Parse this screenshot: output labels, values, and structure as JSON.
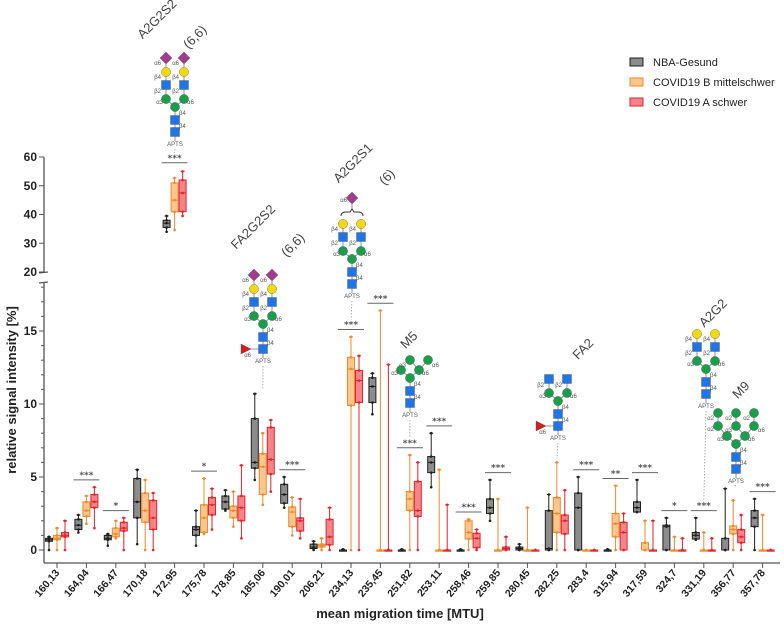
{
  "chart_data": {
    "type": "box",
    "title": "",
    "xlabel": "mean migration time [MTU]",
    "ylabel": "relative signal intensity [%]",
    "y_axis": {
      "broken": true,
      "lower_range": [
        0,
        18
      ],
      "upper_range": [
        20,
        60
      ],
      "lower_ticks": [
        "0",
        "5",
        "10",
        "15"
      ],
      "upper_ticks": [
        "20",
        "30",
        "40",
        "50",
        "60"
      ]
    },
    "grid": false,
    "legend_position": "top-right",
    "categories": [
      "160,13",
      "164,04",
      "166,47",
      "170,18",
      "172,95",
      "175,78",
      "178,85",
      "185,06",
      "190,01",
      "206,21",
      "234,13",
      "235,45",
      "251,82",
      "253,11",
      "258,46",
      "259,85",
      "280,45",
      "282,25",
      "283,4",
      "315,94",
      "317,59",
      "324,7",
      "331,19",
      "356,77",
      "357,78"
    ],
    "stats_order": [
      "min",
      "q1",
      "median",
      "q3",
      "max"
    ],
    "series": [
      {
        "name": "NBA-Gesund",
        "fill": "#8c8c8c",
        "stroke": "#1f1f1f",
        "stats": [
          [
            0,
            0.6,
            0.7,
            0.8,
            0.9
          ],
          [
            1.2,
            1.4,
            1.7,
            2.1,
            2.4
          ],
          [
            0.3,
            0.7,
            0.8,
            1.0,
            1.1
          ],
          [
            0.4,
            2.2,
            3.3,
            4.9,
            5.5
          ],
          [
            34,
            35.5,
            37,
            38,
            39.5
          ],
          [
            0.3,
            1.0,
            1.4,
            1.6,
            2.7
          ],
          [
            2.7,
            2.8,
            3.3,
            3.7,
            4.1
          ],
          [
            4.8,
            5.6,
            6.0,
            9.0,
            10.7
          ],
          [
            2.9,
            3.2,
            3.8,
            4.5,
            5.0
          ],
          [
            0,
            0.1,
            0.2,
            0.4,
            0.6
          ],
          [
            0,
            0,
            0,
            0,
            0.05
          ],
          [
            9.3,
            10.1,
            11.2,
            11.8,
            12.1
          ],
          [
            0,
            0,
            0,
            0,
            0.05
          ],
          [
            4.3,
            5.3,
            6.0,
            6.4,
            8.0
          ],
          [
            0,
            0,
            0,
            0,
            0.05
          ],
          [
            2.0,
            2.5,
            2.9,
            3.5,
            4.8
          ],
          [
            0,
            0,
            0.1,
            0.2,
            0.4
          ],
          [
            0,
            0,
            0.1,
            2.7,
            3.8
          ],
          [
            0,
            0,
            2.9,
            3.9,
            5.0
          ],
          [
            0,
            0,
            0,
            0,
            0.05
          ],
          [
            2.6,
            2.6,
            2.9,
            3.3,
            4.8
          ],
          [
            0,
            0,
            1.6,
            1.7,
            2.2
          ],
          [
            0.7,
            0.75,
            1.0,
            1.2,
            2.2
          ],
          [
            0,
            0,
            0,
            0.8,
            4.2
          ],
          [
            0,
            1.6,
            2.2,
            2.7,
            3.5
          ]
        ]
      },
      {
        "name": "COVID19 B mittelschwer",
        "fill": "#f9c68e",
        "stroke": "#f0892a",
        "stats": [
          [
            0,
            0.7,
            0.8,
            1.0,
            1.5
          ],
          [
            1.8,
            2.3,
            2.7,
            3.3,
            3.7
          ],
          [
            0.8,
            0.9,
            1.1,
            1.5,
            2.0
          ],
          [
            0,
            1.9,
            2.7,
            3.9,
            4.8
          ],
          [
            34.6,
            40.9,
            45,
            51,
            52.7
          ],
          [
            1.1,
            1.2,
            2.2,
            3.1,
            4.9
          ],
          [
            1.6,
            2.2,
            2.7,
            3.0,
            4.0
          ],
          [
            3.1,
            3.8,
            5.7,
            6.6,
            8.0
          ],
          [
            1.0,
            1.6,
            2.6,
            2.95,
            3.6
          ],
          [
            0,
            0.2,
            0.3,
            0.4,
            0.8
          ],
          [
            0,
            9.9,
            12.4,
            13.2,
            14.6
          ],
          [
            0,
            0,
            0,
            0,
            16.4
          ],
          [
            0,
            2.7,
            3.5,
            4.0,
            6.5
          ],
          [
            0,
            0,
            0,
            0,
            5.5
          ],
          [
            0,
            0.75,
            1.2,
            2.0,
            2.1
          ],
          [
            0,
            0,
            0,
            0,
            3.5
          ],
          [
            0,
            0,
            0,
            0,
            2.9
          ],
          [
            0,
            1.2,
            2.5,
            3.6,
            6.0
          ],
          [
            0,
            0,
            0,
            0,
            0
          ],
          [
            0,
            0.9,
            1.8,
            2.5,
            4.4
          ],
          [
            0,
            0,
            0,
            0.5,
            2.0
          ],
          [
            0,
            0,
            0,
            0,
            0.9
          ],
          [
            0,
            0,
            0,
            0,
            1.2
          ],
          [
            0,
            1.1,
            1.4,
            1.65,
            3.4
          ],
          [
            0,
            0,
            0,
            0,
            2.4
          ]
        ]
      },
      {
        "name": "COVID19 A schwer",
        "fill": "#f5848a",
        "stroke": "#e3232c",
        "stats": [
          [
            0,
            0.9,
            1.0,
            1.2,
            2.0
          ],
          [
            1.5,
            2.9,
            3.3,
            3.8,
            4.3
          ],
          [
            0,
            1.3,
            1.5,
            1.9,
            2.2
          ],
          [
            0,
            1.4,
            2.2,
            3.4,
            3.9
          ],
          [
            39.5,
            41,
            47.5,
            52,
            55
          ],
          [
            1.4,
            2.4,
            3.1,
            3.6,
            4.2
          ],
          [
            0.8,
            2.0,
            2.9,
            3.7,
            5.8
          ],
          [
            4.0,
            5.2,
            6.2,
            8.4,
            8.9
          ],
          [
            0.8,
            1.3,
            2.0,
            2.2,
            3.5
          ],
          [
            0,
            0.35,
            0.9,
            2.1,
            2.9
          ],
          [
            0,
            10.1,
            11.6,
            12.3,
            13.3
          ],
          [
            0,
            0,
            0,
            0,
            12.7
          ],
          [
            0,
            2.3,
            2.7,
            4.7,
            6.0
          ],
          [
            0,
            0,
            0,
            0,
            3.1
          ],
          [
            0,
            0.15,
            0.8,
            1.15,
            1.4
          ],
          [
            0,
            0,
            0.1,
            0.2,
            0.9
          ],
          [
            0,
            0,
            0,
            0,
            0
          ],
          [
            0,
            1.1,
            2.0,
            2.4,
            4.1
          ],
          [
            0,
            0,
            0,
            0,
            0
          ],
          [
            0,
            0,
            1.2,
            1.9,
            2.5
          ],
          [
            0,
            0,
            0,
            0,
            2.0
          ],
          [
            0,
            0,
            0,
            0,
            0.8
          ],
          [
            0,
            0,
            0,
            0,
            0.8
          ],
          [
            0,
            0.5,
            0.9,
            1.4,
            2.4
          ],
          [
            0,
            0,
            0,
            0,
            0
          ]
        ]
      }
    ],
    "significance": [
      "",
      "***",
      "*",
      "",
      "***",
      "*",
      "",
      "",
      "***",
      "",
      "***",
      "***",
      "***",
      "***",
      "***",
      "***",
      "",
      "",
      "***",
      "**",
      "***",
      "*",
      "***",
      "",
      "***"
    ],
    "annotations": [
      {
        "name": "A2G2S2",
        "sub": "(6,6)",
        "category": "172,95",
        "kind": "A2S2",
        "reducing_end": "APTS",
        "linkages": [
          "β4",
          "β4",
          "α3",
          "α6",
          "β2",
          "β2",
          "β4",
          "β4",
          "α6",
          "α6"
        ]
      },
      {
        "name": "FA2G2S2",
        "sub": "(6,6)",
        "category": "185,06",
        "kind": "FA2S2",
        "reducing_end": "APTS",
        "linkages": [
          "β4",
          "β4",
          "α3",
          "α6",
          "β2",
          "β2",
          "β4",
          "β4",
          "α6",
          "α6",
          "α6"
        ]
      },
      {
        "name": "A2G2S1",
        "sub": "(6)",
        "category": "234,13",
        "kind": "A2S1",
        "reducing_end": "APTS",
        "linkages": [
          "β4",
          "β4",
          "α3",
          "α6",
          "β2",
          "β2",
          "β4",
          "β4",
          "α6"
        ]
      },
      {
        "name": "M5",
        "sub": "",
        "category": "251,82",
        "kind": "M5",
        "reducing_end": "APTS",
        "linkages": [
          "β4",
          "β4",
          "α3",
          "α6",
          "α3",
          "α6"
        ]
      },
      {
        "name": "FA2",
        "sub": "",
        "category": "282,25",
        "kind": "FA2",
        "reducing_end": "APTS",
        "linkages": [
          "β4",
          "β4",
          "α3",
          "α6",
          "β2",
          "β2",
          "α6"
        ]
      },
      {
        "name": "A2G2",
        "sub": "",
        "category": "331,19",
        "kind": "A2G2",
        "reducing_end": "APTS",
        "linkages": [
          "β4",
          "β4",
          "α3",
          "α6",
          "β2",
          "β2",
          "β4",
          "β4"
        ]
      },
      {
        "name": "M9",
        "sub": "",
        "category": "356,77",
        "kind": "M9",
        "reducing_end": "APTS",
        "linkages": [
          "β4",
          "β4",
          "α3",
          "α6",
          "α2",
          "α3",
          "α6",
          "α2",
          "α2",
          "α2"
        ]
      }
    ],
    "glycan_colors": {
      "GlcNAc": "#1f74e6",
      "Man": "#1b9e4b",
      "Gal": "#f4d80c",
      "Sia": "#a23b8f",
      "Fuc": "#d21f1f"
    }
  }
}
